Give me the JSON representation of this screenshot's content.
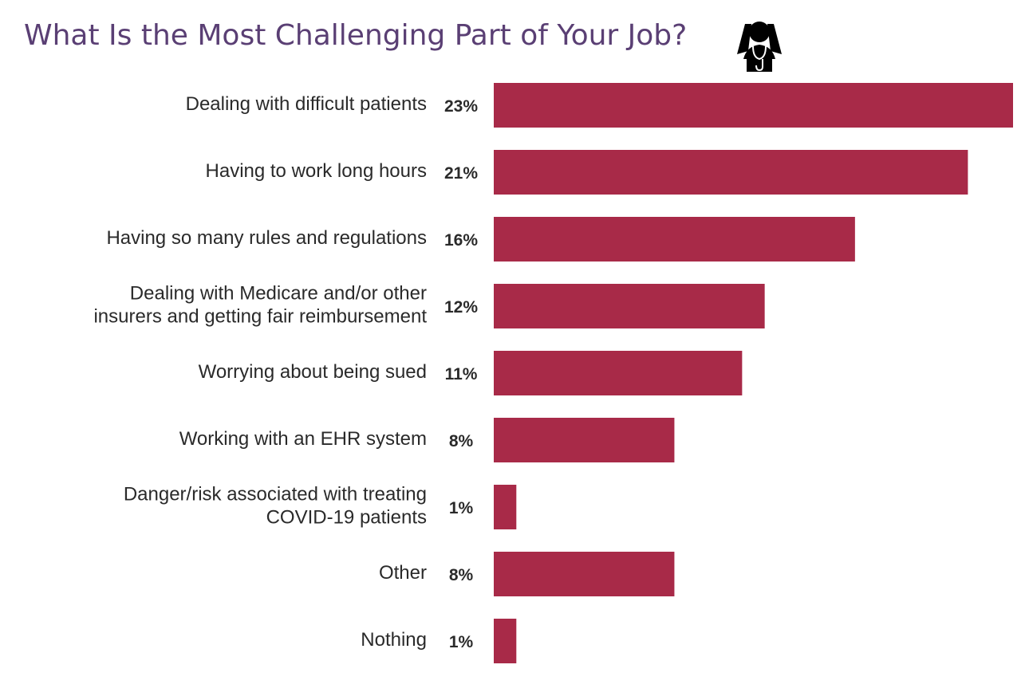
{
  "chart_data": {
    "type": "bar",
    "orientation": "horizontal",
    "title": "What Is the Most Challenging Part of Your Job?",
    "icon": "stressed-doctor-icon",
    "bar_color": "#a82a48",
    "title_color": "#5a3f74",
    "categories": [
      [
        "Dealing with difficult patients"
      ],
      [
        "Having to work long hours"
      ],
      [
        "Having so many rules and regulations"
      ],
      [
        "Dealing with Medicare and/or other",
        "insurers and getting fair reimbursement"
      ],
      [
        "Worrying about being sued"
      ],
      [
        "Working with an EHR system"
      ],
      [
        "Danger/risk associated with treating",
        "COVID-19 patients"
      ],
      [
        "Other"
      ],
      [
        "Nothing"
      ]
    ],
    "values": [
      23,
      21,
      16,
      12,
      11,
      8,
      1,
      8,
      1
    ],
    "value_labels": [
      "23%",
      "21%",
      "16%",
      "12%",
      "11%",
      "8%",
      "1%",
      "8%",
      "1%"
    ],
    "unit": "%",
    "xlim": [
      0,
      23
    ],
    "grid": false,
    "legend": "none"
  }
}
